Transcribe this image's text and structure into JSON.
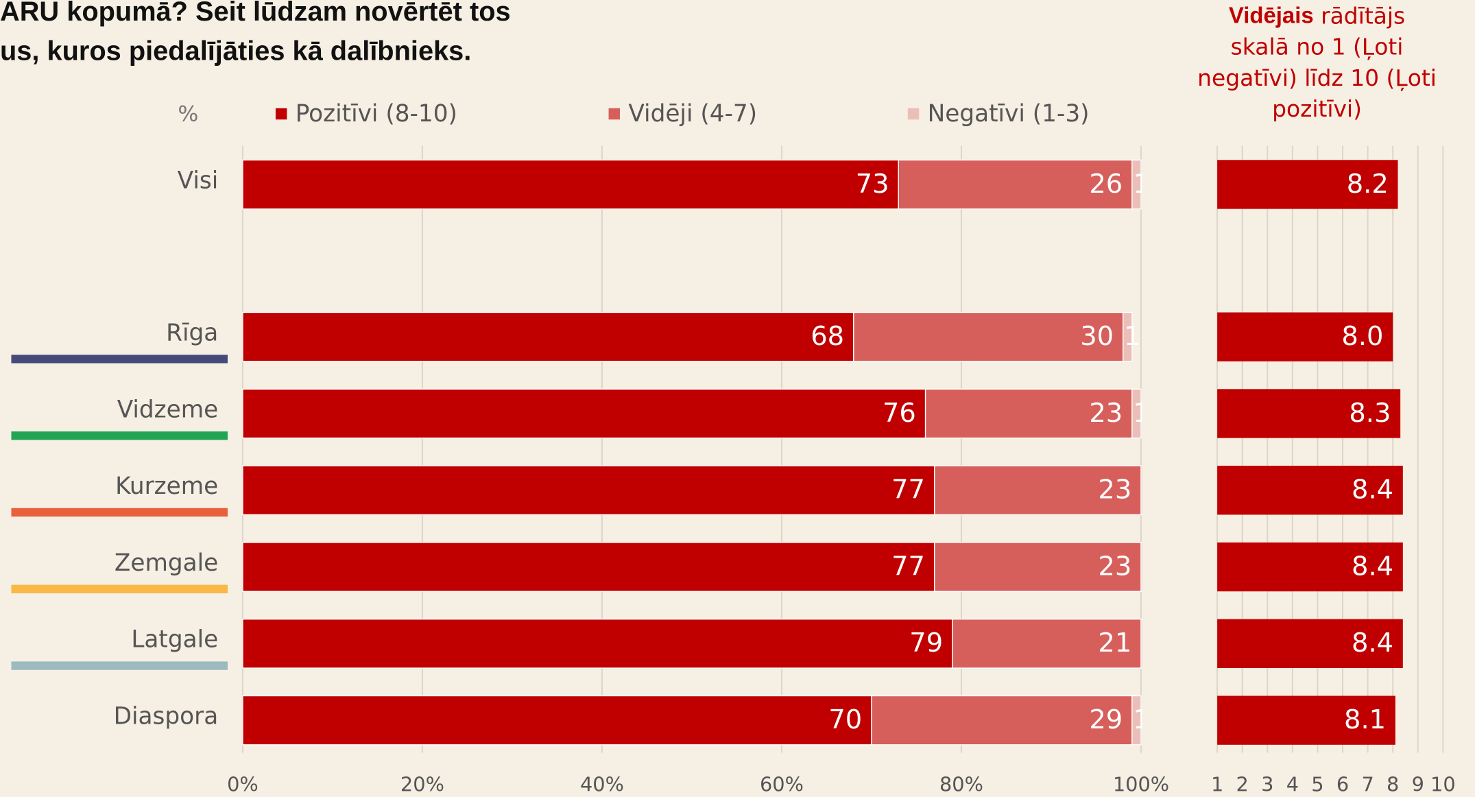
{
  "title_lines": [
    "ARU kopumā? Seit lūdzam novērtēt tos",
    "us, kuros piedalījāties kā dalībnieks."
  ],
  "chart_data": [
    {
      "type": "stacked-bar-horizontal",
      "unit_label": "%",
      "categories": [
        "Visi",
        "Rīga",
        "Vidzeme",
        "Kurzeme",
        "Zemgale",
        "Latgale",
        "Diaspora"
      ],
      "category_colors": [
        null,
        "#444a7a",
        "#22a454",
        "#e8603c",
        "#f9b944",
        "#9bbbc0",
        null
      ],
      "series": [
        {
          "name": "Pozitīvi (8-10)",
          "color": "#c00000",
          "values": [
            73,
            68,
            76,
            77,
            77,
            79,
            70
          ]
        },
        {
          "name": "Vidēji (4-7)",
          "color": "#d65f5c",
          "values": [
            26,
            30,
            23,
            23,
            23,
            21,
            29
          ]
        },
        {
          "name": "Negatīvi (1-3)",
          "color": "#ebbfb8",
          "values": [
            1,
            1,
            1,
            1,
            1,
            0.3,
            1
          ],
          "value_labels": [
            "1",
            "1",
            "1",
            "1",
            "1",
            null,
            "1"
          ]
        }
      ],
      "xlim": [
        0,
        100
      ],
      "xticks": [
        {
          "value": 0,
          "label": "0%"
        },
        {
          "value": 20,
          "label": "20%"
        },
        {
          "value": 40,
          "label": "40%"
        },
        {
          "value": 60,
          "label": "60%"
        },
        {
          "value": 80,
          "label": "80%"
        },
        {
          "value": 100,
          "label": "100%"
        }
      ],
      "grid": true
    },
    {
      "type": "bar-horizontal",
      "note_bold": "Vidējais",
      "note_lines": [
        " rādītājs",
        "skalā no 1 (Ļoti",
        "negatīvi) līdz 10 (Ļoti",
        "pozitīvi)"
      ],
      "color": "#c00000",
      "values": [
        8.2,
        8.0,
        8.3,
        8.4,
        8.4,
        8.4,
        8.1
      ],
      "value_labels": [
        "8.2",
        "8.0",
        "8.3",
        "8.4",
        "8.4",
        "8.4",
        "8.1"
      ],
      "xlim": [
        1,
        10
      ],
      "xticks": [
        1,
        2,
        3,
        4,
        5,
        6,
        7,
        8,
        9,
        10
      ],
      "grid": true
    }
  ]
}
